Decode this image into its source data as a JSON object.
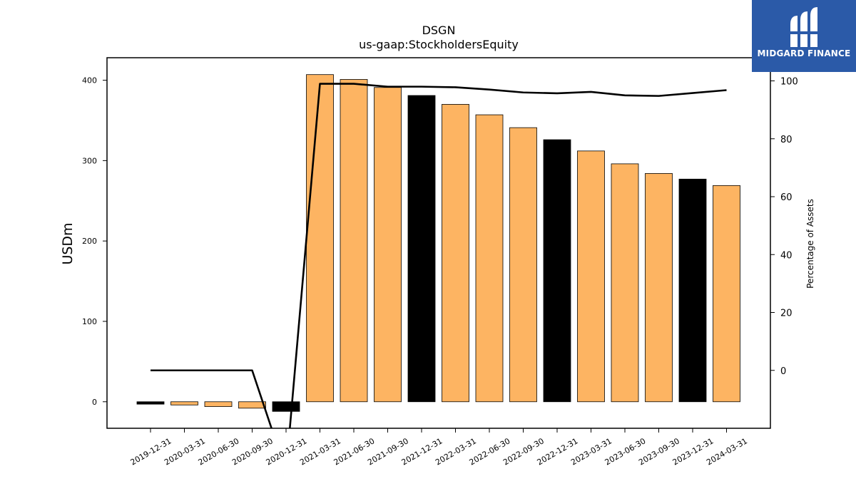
{
  "chart_data": {
    "type": "bar",
    "title": "DSGN",
    "subtitle": "us-gaap:StockholdersEquity",
    "ylabel": "USDm",
    "y2label": "Percentage of Assets",
    "ylim": [
      -33,
      428
    ],
    "y2lim": [
      -20,
      108
    ],
    "yticks": [
      0,
      100,
      200,
      300,
      400
    ],
    "y2ticks": [
      0,
      20,
      40,
      60,
      80,
      100
    ],
    "categories": [
      "2019-12-31",
      "2020-03-31",
      "2020-06-30",
      "2020-09-30",
      "2020-12-31",
      "2021-03-31",
      "2021-06-30",
      "2021-09-30",
      "2021-12-31",
      "2022-03-31",
      "2022-06-30",
      "2022-09-30",
      "2022-12-31",
      "2023-03-31",
      "2023-06-30",
      "2023-09-30",
      "2023-12-31",
      "2024-03-31"
    ],
    "series": [
      {
        "axis": "left",
        "kind": "bar",
        "values": [
          -3,
          -4,
          -6,
          -8,
          -12,
          407,
          401,
          391,
          381,
          370,
          357,
          341,
          326,
          312,
          296,
          284,
          277,
          269
        ],
        "colors": [
          "#000000",
          "#fdb462",
          "#fdb462",
          "#fdb462",
          "#000000",
          "#fdb462",
          "#fdb462",
          "#fdb462",
          "#000000",
          "#fdb462",
          "#fdb462",
          "#fdb462",
          "#000000",
          "#fdb462",
          "#fdb462",
          "#fdb462",
          "#000000",
          "#fdb462"
        ]
      },
      {
        "axis": "right",
        "kind": "line",
        "color": "#000000",
        "values": [
          0,
          0,
          0,
          0,
          -35,
          99,
          99,
          98,
          98,
          97.8,
          97,
          96,
          95.7,
          96.2,
          95,
          94.8,
          95.8,
          96.8
        ]
      }
    ],
    "grid": false
  },
  "logo": {
    "text": "MIDGARD FINANCE"
  }
}
